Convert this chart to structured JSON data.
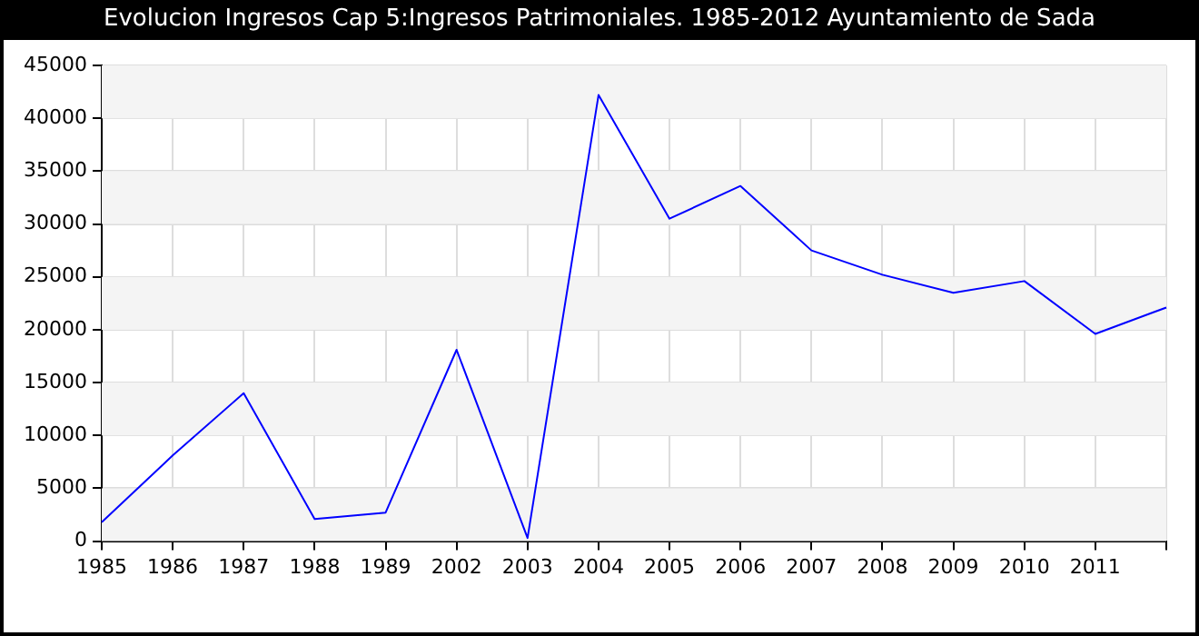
{
  "chart_data": {
    "type": "line",
    "title": "Evolucion Ingresos Cap 5:Ingresos Patrimoniales. 1985-2012 Ayuntamiento de Sada",
    "categories": [
      "1985",
      "1986",
      "1987",
      "1988",
      "1989",
      "2002",
      "2003",
      "2004",
      "2005",
      "2006",
      "2007",
      "2008",
      "2009",
      "2010",
      "2011",
      null
    ],
    "series": [
      {
        "color": "#0000ff",
        "values": [
          1800,
          8100,
          14000,
          2100,
          2700,
          18100,
          300,
          42200,
          30500,
          33600,
          27500,
          25200,
          23500,
          24600,
          19600,
          22100
        ]
      }
    ],
    "ylim": [
      0,
      45000
    ],
    "yticks": [
      0,
      5000,
      10000,
      15000,
      20000,
      25000,
      30000,
      35000,
      40000,
      45000
    ],
    "grid": true,
    "legend": false,
    "marker": "none",
    "line_style": "solid"
  }
}
